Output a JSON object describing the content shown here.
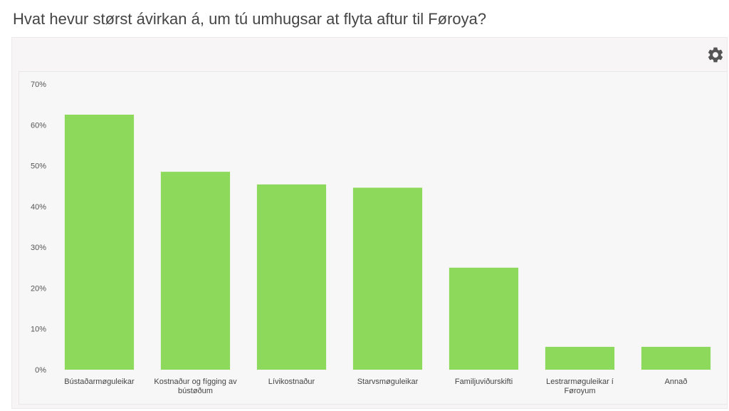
{
  "page": {
    "title": "Hvat hevur størst ávirkan á, um tú umhugsar at flyta aftur til Føroya?"
  },
  "toolbar": {
    "settings_icon": "gear-icon"
  },
  "colors": {
    "bar": "#8dd95b",
    "axis_text": "#555555",
    "title": "#444444"
  },
  "chart_data": {
    "type": "bar",
    "title": "",
    "xlabel": "",
    "ylabel": "",
    "ylim": [
      0,
      70
    ],
    "y_ticks": [
      "0%",
      "10%",
      "20%",
      "30%",
      "40%",
      "50%",
      "60%",
      "70%"
    ],
    "y_tick_values": [
      0,
      10,
      20,
      30,
      40,
      50,
      60,
      70
    ],
    "grid": false,
    "legend": "none",
    "categories": [
      [
        "Bústaðarmøguleikar"
      ],
      [
        "Kostnaður og fígging av",
        "bústøðum"
      ],
      [
        "Lívikostnaður"
      ],
      [
        "Starvsmøguleikar"
      ],
      [
        "Familjuviðurskifti"
      ],
      [
        "Lestrarmøguleikar í",
        "Føroyum"
      ],
      [
        "Annað"
      ]
    ],
    "values": [
      62.5,
      48.5,
      45.4,
      44.6,
      25.0,
      5.6,
      5.6
    ]
  }
}
